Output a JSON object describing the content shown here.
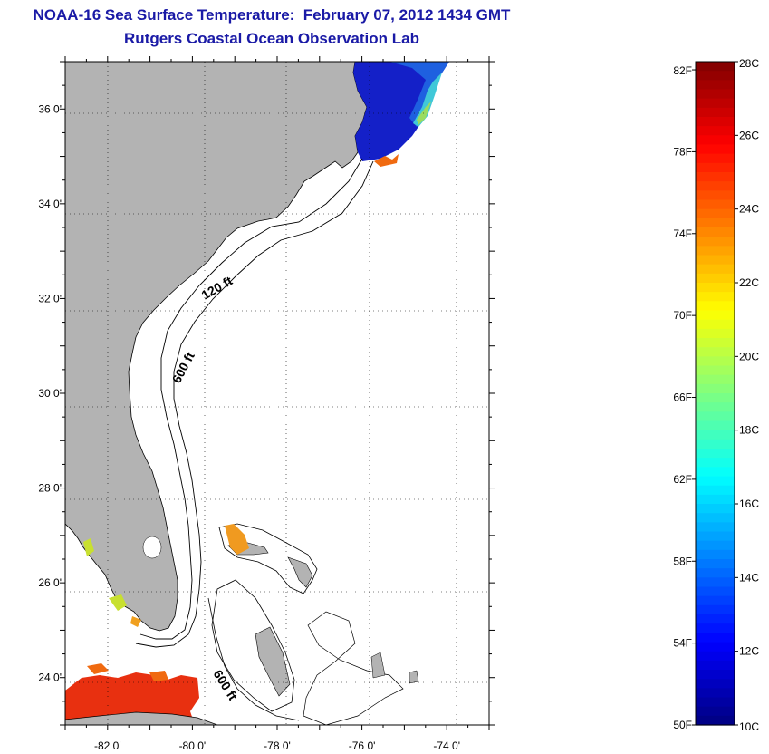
{
  "header": {
    "title": "NOAA-16 Sea Surface Temperature:  February 07, 2012 1434 GMT",
    "subtitle": "Rutgers Coastal Ocean Observation Lab"
  },
  "map": {
    "lon_range": [
      -83,
      -73
    ],
    "lat_range": [
      23,
      37
    ],
    "lon_ticks": [
      {
        "value": -82,
        "label": "-82 0'"
      },
      {
        "value": -80,
        "label": "-80 0'"
      },
      {
        "value": -78,
        "label": "-78 0'"
      },
      {
        "value": -76,
        "label": "-76 0'"
      },
      {
        "value": -74,
        "label": "-74 0'"
      }
    ],
    "lat_ticks": [
      {
        "value": 36,
        "label": "36 0'"
      },
      {
        "value": 34,
        "label": "34 0'"
      },
      {
        "value": 32,
        "label": "32 0'"
      },
      {
        "value": 30,
        "label": "30 0'"
      },
      {
        "value": 28,
        "label": "28 0'"
      },
      {
        "value": 26,
        "label": "26 0'"
      },
      {
        "value": 24,
        "label": "24 0'"
      }
    ],
    "contour_labels": {
      "shelf_120": "120 ft",
      "shelf_600": "600 ft",
      "bahamas_600": "600 ft"
    },
    "colors": {
      "land": "#b3b3b3",
      "water": "#ffffff",
      "grid": "#000000"
    }
  },
  "colorbar": {
    "min_c": 10,
    "max_c": 28,
    "fahrenheit_labels": [
      "82F",
      "78F",
      "74F",
      "70F",
      "66F",
      "62F",
      "58F",
      "54F",
      "50F"
    ],
    "celsius_labels": [
      "28C",
      "26C",
      "24C",
      "22C",
      "20C",
      "18C",
      "16C",
      "14C",
      "12C",
      "10C"
    ]
  }
}
